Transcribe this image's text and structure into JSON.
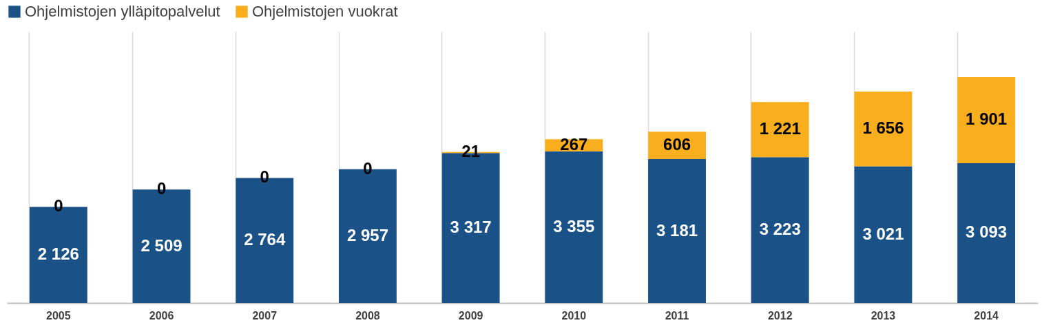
{
  "chart_data": {
    "type": "bar",
    "stacked": true,
    "categories": [
      "2005",
      "2006",
      "2007",
      "2008",
      "2009",
      "2010",
      "2011",
      "2012",
      "2013",
      "2014"
    ],
    "series": [
      {
        "name": "Ohjelmistojen ylläpitopalvelut",
        "color": "#1a5186",
        "values": [
          2126,
          2509,
          2764,
          2957,
          3317,
          3355,
          3181,
          3223,
          3021,
          3093
        ],
        "value_labels": [
          "2 126",
          "2 509",
          "2 764",
          "2 957",
          "3 317",
          "3 355",
          "3 181",
          "3 223",
          "3 021",
          "3 093"
        ]
      },
      {
        "name": "Ohjelmistojen vuokrat",
        "color": "#f9ae1e",
        "values": [
          0,
          0,
          0,
          0,
          21,
          267,
          606,
          1221,
          1656,
          1901
        ],
        "value_labels": [
          "0",
          "0",
          "0",
          "0",
          "21",
          "267",
          "606",
          "1 221",
          "1 656",
          "1 901"
        ]
      }
    ],
    "ylim": [
      0,
      6000
    ],
    "tick_labels": "x",
    "grid": "x",
    "legend": "top"
  }
}
